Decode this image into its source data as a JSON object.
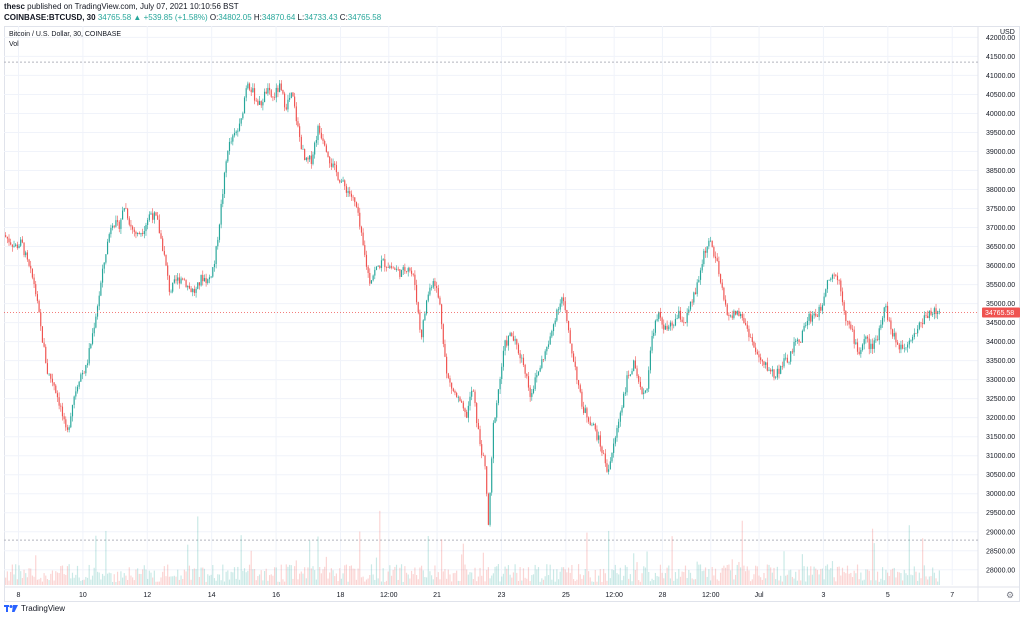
{
  "header": {
    "publisher": "thesc",
    "published_text": "published on TradingView.com, July 07, 2021 10:10:56 BST",
    "symbol": "COINBASE:BTCUSD, 30",
    "last": "34765.58",
    "change": "▲ +539.85 (+1.58%)",
    "open_label": "O:",
    "open": "34802.05",
    "high_label": "H:",
    "high": "34870.64",
    "low_label": "L:",
    "low": "34733.43",
    "close_label": "C:",
    "close": "34765.58"
  },
  "legend": {
    "title": "Bitcoin / U.S. Dollar, 30, COINBASE",
    "vol": "Vol"
  },
  "footer": {
    "brand": "TradingView"
  },
  "colors": {
    "up": "#26a69a",
    "down": "#ef5350",
    "price_line": "#ef5350",
    "grid": "#f0f3fa",
    "axis_text": "#131722"
  },
  "chart_data": {
    "type": "candlestick",
    "currency": "USD",
    "last_price": 34765.58,
    "ylim": [
      27600,
      42300
    ],
    "y_ticks": [
      28000,
      28500,
      29000,
      29500,
      30000,
      30500,
      31000,
      31500,
      32000,
      32500,
      33000,
      33500,
      34000,
      34500,
      35000,
      35500,
      36000,
      36500,
      37000,
      37500,
      38000,
      38500,
      39000,
      39500,
      40000,
      40500,
      41000,
      41500,
      42000
    ],
    "y_tick_labels": [
      "28000.00",
      "28500.00",
      "29000.00",
      "29500.00",
      "30000.00",
      "30500.00",
      "31000.00",
      "31500.00",
      "32000.00",
      "32500.00",
      "33000.00",
      "33500.00",
      "34000.00",
      "34500.00",
      "35000.00",
      "35500.00",
      "36000.00",
      "36500.00",
      "37000.00",
      "37500.00",
      "38000.00",
      "38500.00",
      "39000.00",
      "39500.00",
      "40000.00",
      "40500.00",
      "41000.00",
      "41500.00",
      "42000.00"
    ],
    "x_ticks": [
      "8",
      "10",
      "12",
      "14",
      "16",
      "18",
      "12:00",
      "21",
      "23",
      "25",
      "12:00",
      "28",
      "12:00",
      "Jul",
      "3",
      "5",
      "7"
    ],
    "x_tick_days": [
      1,
      3,
      5,
      7,
      9,
      11,
      12.5,
      14,
      16,
      18,
      19.5,
      21,
      22.5,
      24,
      26,
      28,
      30
    ],
    "x_range_days": [
      0.55,
      30.8
    ],
    "guide_high": 41350,
    "guide_low": 28780,
    "price_path": [
      [
        0.55,
        36800
      ],
      [
        0.9,
        36500
      ],
      [
        1.1,
        36600
      ],
      [
        1.3,
        36000
      ],
      [
        1.5,
        35500
      ],
      [
        1.7,
        34300
      ],
      [
        1.9,
        33200
      ],
      [
        2.1,
        32900
      ],
      [
        2.3,
        32300
      ],
      [
        2.5,
        31500
      ],
      [
        2.7,
        32500
      ],
      [
        2.9,
        33100
      ],
      [
        3.1,
        33300
      ],
      [
        3.3,
        34200
      ],
      [
        3.5,
        35200
      ],
      [
        3.7,
        36300
      ],
      [
        3.9,
        37200
      ],
      [
        4.1,
        37000
      ],
      [
        4.3,
        37600
      ],
      [
        4.5,
        37000
      ],
      [
        4.7,
        36800
      ],
      [
        4.9,
        37000
      ],
      [
        5.1,
        37400
      ],
      [
        5.3,
        37200
      ],
      [
        5.5,
        36400
      ],
      [
        5.7,
        35300
      ],
      [
        5.9,
        35600
      ],
      [
        6.1,
        35700
      ],
      [
        6.3,
        35400
      ],
      [
        6.5,
        35300
      ],
      [
        6.7,
        35700
      ],
      [
        6.9,
        35600
      ],
      [
        7.1,
        36100
      ],
      [
        7.3,
        37600
      ],
      [
        7.5,
        39100
      ],
      [
        7.7,
        39400
      ],
      [
        7.9,
        39700
      ],
      [
        8.1,
        40900
      ],
      [
        8.3,
        40500
      ],
      [
        8.5,
        40200
      ],
      [
        8.7,
        40600
      ],
      [
        8.9,
        40400
      ],
      [
        9.1,
        40700
      ],
      [
        9.3,
        40200
      ],
      [
        9.5,
        40500
      ],
      [
        9.7,
        39500
      ],
      [
        9.9,
        38700
      ],
      [
        10.1,
        38800
      ],
      [
        10.3,
        39600
      ],
      [
        10.5,
        39300
      ],
      [
        10.7,
        38700
      ],
      [
        10.9,
        38400
      ],
      [
        11.1,
        38100
      ],
      [
        11.3,
        37900
      ],
      [
        11.5,
        37500
      ],
      [
        11.7,
        36500
      ],
      [
        11.9,
        35600
      ],
      [
        12.1,
        35900
      ],
      [
        12.3,
        36100
      ],
      [
        12.5,
        36000
      ],
      [
        12.7,
        35900
      ],
      [
        12.9,
        35800
      ],
      [
        13.1,
        36000
      ],
      [
        13.3,
        35600
      ],
      [
        13.5,
        34100
      ],
      [
        13.7,
        35200
      ],
      [
        13.9,
        35700
      ],
      [
        14.1,
        34900
      ],
      [
        14.3,
        33100
      ],
      [
        14.5,
        32700
      ],
      [
        14.7,
        32400
      ],
      [
        14.9,
        32000
      ],
      [
        15.1,
        32800
      ],
      [
        15.3,
        31500
      ],
      [
        15.5,
        30600
      ],
      [
        15.6,
        29100
      ],
      [
        15.75,
        31800
      ],
      [
        15.9,
        32700
      ],
      [
        16.1,
        33900
      ],
      [
        16.3,
        34200
      ],
      [
        16.5,
        33800
      ],
      [
        16.7,
        33400
      ],
      [
        16.9,
        32600
      ],
      [
        17.1,
        33100
      ],
      [
        17.3,
        33600
      ],
      [
        17.5,
        34000
      ],
      [
        17.7,
        34800
      ],
      [
        17.9,
        35200
      ],
      [
        18.1,
        34100
      ],
      [
        18.3,
        33300
      ],
      [
        18.5,
        32300
      ],
      [
        18.7,
        32000
      ],
      [
        18.9,
        31700
      ],
      [
        19.1,
        31200
      ],
      [
        19.3,
        30600
      ],
      [
        19.5,
        31300
      ],
      [
        19.7,
        32200
      ],
      [
        19.9,
        33000
      ],
      [
        20.1,
        33400
      ],
      [
        20.3,
        32700
      ],
      [
        20.5,
        32700
      ],
      [
        20.7,
        34300
      ],
      [
        20.9,
        34700
      ],
      [
        21.1,
        34300
      ],
      [
        21.3,
        34400
      ],
      [
        21.5,
        34700
      ],
      [
        21.7,
        34500
      ],
      [
        21.9,
        35000
      ],
      [
        22.1,
        35500
      ],
      [
        22.3,
        36400
      ],
      [
        22.5,
        36600
      ],
      [
        22.7,
        36000
      ],
      [
        22.9,
        35100
      ],
      [
        23.1,
        34600
      ],
      [
        23.3,
        34800
      ],
      [
        23.5,
        34600
      ],
      [
        23.7,
        34200
      ],
      [
        23.9,
        33700
      ],
      [
        24.1,
        33400
      ],
      [
        24.3,
        33300
      ],
      [
        24.5,
        33100
      ],
      [
        24.7,
        33400
      ],
      [
        24.9,
        33500
      ],
      [
        25.1,
        33900
      ],
      [
        25.3,
        34100
      ],
      [
        25.5,
        34600
      ],
      [
        25.7,
        34700
      ],
      [
        25.9,
        34800
      ],
      [
        26.1,
        35600
      ],
      [
        26.3,
        35800
      ],
      [
        26.5,
        35600
      ],
      [
        26.7,
        34600
      ],
      [
        26.9,
        34200
      ],
      [
        27.1,
        33700
      ],
      [
        27.3,
        34100
      ],
      [
        27.5,
        33800
      ],
      [
        27.7,
        34200
      ],
      [
        27.9,
        35000
      ],
      [
        28.1,
        34300
      ],
      [
        28.3,
        33900
      ],
      [
        28.5,
        33900
      ],
      [
        28.7,
        34100
      ],
      [
        28.9,
        34300
      ],
      [
        29.1,
        34600
      ],
      [
        29.3,
        34800
      ],
      [
        29.6,
        34765.58
      ]
    ]
  }
}
